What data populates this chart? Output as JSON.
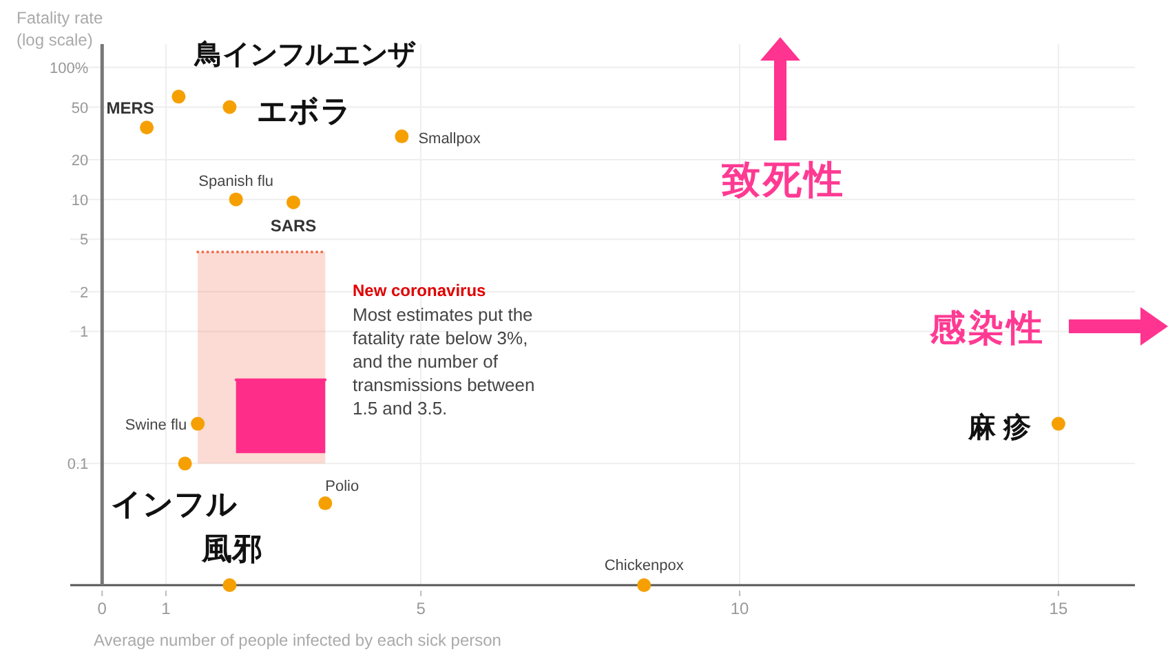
{
  "chart_data": {
    "type": "scatter",
    "xlabel": "Average number of people infected by each sick person",
    "ylabel": "Fatality rate\n(log scale)",
    "log": "y",
    "xlim": [
      -0.5,
      16.2
    ],
    "ylim": [
      0.012,
      150
    ],
    "xticks": [
      0,
      1,
      5,
      10,
      15
    ],
    "yticks": [
      {
        "value": 100,
        "label": "100%"
      },
      50,
      20,
      10,
      5,
      2,
      1,
      0.1
    ],
    "grid": true,
    "marker": "circle",
    "annotations": [
      "New coronavirus",
      "Most estimates put the fatality rate below 3%, and the number of transmissions between 1.5 and 3.5.",
      "致死性",
      "感染性"
    ],
    "series": [
      {
        "type": "line",
        "marker": "none",
        "color": "#f07050",
        "line_style": "dotted",
        "x": [
          1.5,
          3.5
        ],
        "values": [
          4,
          4
        ],
        "upper": [
          4,
          4
        ],
        "lower": [
          0.1,
          0.1
        ]
      },
      {
        "type": "line",
        "marker": "none",
        "color": "#ff2d8a",
        "x": [
          2.1,
          3.5
        ],
        "values": [
          0.43,
          0.43
        ],
        "upper": [
          0.43,
          0.43
        ],
        "lower": [
          0.12,
          0.12
        ]
      },
      {
        "name": "鳥インフルエンザ",
        "color": "#f5a000",
        "x": [
          1.2
        ],
        "values": [
          60
        ]
      },
      {
        "name": "エボラ",
        "color": "#f5a000",
        "x": [
          2.0
        ],
        "values": [
          50
        ]
      },
      {
        "name": "MERS",
        "color": "#f5a000",
        "x": [
          0.7
        ],
        "values": [
          35
        ]
      },
      {
        "name": "Smallpox",
        "color": "#f5a000",
        "x": [
          4.7
        ],
        "values": [
          30
        ]
      },
      {
        "name": "Spanish flu",
        "color": "#f5a000",
        "x": [
          2.1
        ],
        "values": [
          10
        ]
      },
      {
        "name": "SARS",
        "color": "#f5a000",
        "x": [
          3.0
        ],
        "values": [
          9.5
        ]
      },
      {
        "name": "Swine flu",
        "color": "#f5a000",
        "x": [
          1.5
        ],
        "values": [
          0.2
        ]
      },
      {
        "name": "インフル",
        "color": "#f5a000",
        "x": [
          1.3
        ],
        "values": [
          0.1
        ]
      },
      {
        "name": "Polio",
        "color": "#f5a000",
        "x": [
          3.5
        ],
        "values": [
          0.05
        ]
      },
      {
        "name": "風邪",
        "color": "#f5a000",
        "x": [
          2.0
        ],
        "values": [
          0.012
        ]
      },
      {
        "name": "Chickenpox",
        "color": "#f5a000",
        "x": [
          8.5
        ],
        "values": [
          0.012
        ]
      },
      {
        "name": "麻 疹",
        "color": "#f5a000",
        "x": [
          15
        ],
        "values": [
          0.2
        ]
      }
    ]
  }
}
